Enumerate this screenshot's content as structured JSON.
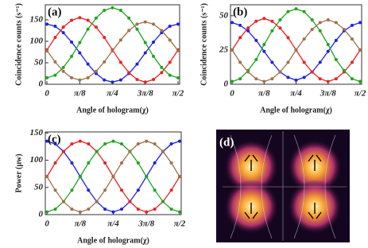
{
  "chart_data": [
    {
      "type": "line",
      "panel_label": "(a)",
      "xlabel": "Angle of hologram(χ)",
      "ylabel": "Coincidence counts (s⁻¹)",
      "x": [
        0,
        0.098,
        0.196,
        0.295,
        0.393,
        0.491,
        0.589,
        0.687,
        0.785,
        0.884,
        0.982,
        1.08,
        1.178,
        1.276,
        1.374,
        1.473,
        1.571
      ],
      "xlim": [
        -0.02,
        1.59
      ],
      "xticks": [
        0,
        {
          "value": 0.393,
          "label": "π/8"
        },
        {
          "value": 0.785,
          "label": "π/4"
        },
        {
          "value": 1.178,
          "label": "3π/8"
        },
        {
          "value": 1.571,
          "label": "π/2"
        }
      ],
      "ylim": [
        0,
        185
      ],
      "yticks": [
        0,
        50,
        100,
        150
      ],
      "series": [
        {
          "color": "#1f1fe6",
          "values": [
            140,
            135,
            120,
            98,
            73,
            47,
            25,
            10,
            5,
            10,
            25,
            47,
            73,
            98,
            120,
            135,
            140
          ]
        },
        {
          "color": "#ee2020",
          "values": [
            80,
            109,
            133,
            149,
            155,
            149,
            133,
            109,
            80,
            51,
            27,
            11,
            5,
            11,
            27,
            51,
            80
          ]
        },
        {
          "color": "#1fa51f",
          "values": [
            15,
            21,
            39,
            65,
            97,
            128,
            154,
            172,
            178,
            172,
            154,
            128,
            97,
            65,
            39,
            21,
            15
          ]
        },
        {
          "color": "#a0704a",
          "values": [
            78,
            52,
            30,
            15,
            10,
            15,
            30,
            52,
            78,
            103,
            125,
            140,
            145,
            140,
            125,
            103,
            78
          ]
        }
      ]
    },
    {
      "type": "line",
      "panel_label": "(b)",
      "xlabel": "Angle of hologram(χ)",
      "ylabel": "Coincidence counts (s⁻¹)",
      "x": [
        0,
        0.098,
        0.196,
        0.295,
        0.393,
        0.491,
        0.589,
        0.687,
        0.785,
        0.884,
        0.982,
        1.08,
        1.178,
        1.276,
        1.374,
        1.473,
        1.571
      ],
      "xlim": [
        -0.02,
        1.59
      ],
      "xticks": [
        0,
        {
          "value": 0.393,
          "label": "π/8"
        },
        {
          "value": 0.785,
          "label": "π/4"
        },
        {
          "value": 1.178,
          "label": "3π/8"
        },
        {
          "value": 1.571,
          "label": "π/2"
        }
      ],
      "ylim": [
        0,
        58
      ],
      "yticks": [
        0,
        25,
        50
      ],
      "series": [
        {
          "color": "#1f1fe6",
          "values": [
            45,
            43,
            39,
            32,
            24,
            16,
            9,
            5,
            3,
            5,
            9,
            16,
            24,
            32,
            39,
            43,
            45
          ]
        },
        {
          "color": "#ee2020",
          "values": [
            25,
            34,
            41,
            46,
            48,
            46,
            41,
            34,
            25,
            16,
            9,
            4,
            2,
            4,
            9,
            16,
            25
          ]
        },
        {
          "color": "#1fa51f",
          "values": [
            2,
            4,
            10,
            18,
            29,
            39,
            47,
            53,
            55,
            53,
            47,
            39,
            29,
            18,
            10,
            4,
            2
          ]
        },
        {
          "color": "#a0704a",
          "values": [
            25,
            16,
            9,
            4,
            2,
            4,
            9,
            16,
            25,
            33,
            40,
            45,
            47,
            45,
            40,
            33,
            25
          ]
        }
      ]
    },
    {
      "type": "line",
      "panel_label": "(c)",
      "xlabel": "Angle of hologram(χ)",
      "ylabel": "Power (μw)",
      "x": [
        0,
        0.098,
        0.196,
        0.295,
        0.393,
        0.491,
        0.589,
        0.687,
        0.785,
        0.884,
        0.982,
        1.08,
        1.178,
        1.276,
        1.374,
        1.473,
        1.571
      ],
      "xlim": [
        -0.02,
        1.59
      ],
      "xticks": [
        0,
        {
          "value": 0.393,
          "label": "π/8"
        },
        {
          "value": 0.785,
          "label": "π/4"
        },
        {
          "value": 1.178,
          "label": "3π/8"
        },
        {
          "value": 1.571,
          "label": "π/2"
        }
      ],
      "ylim": [
        0,
        152
      ],
      "yticks": [
        0,
        50,
        100,
        150
      ],
      "series": [
        {
          "color": "#1f1fe6",
          "values": [
            135,
            130,
            116,
            95,
            70,
            45,
            24,
            10,
            5,
            10,
            24,
            45,
            70,
            95,
            116,
            130,
            135
          ]
        },
        {
          "color": "#ee2020",
          "values": [
            70,
            95,
            116,
            130,
            135,
            130,
            116,
            95,
            70,
            45,
            24,
            10,
            5,
            10,
            24,
            45,
            70
          ]
        },
        {
          "color": "#1fa51f",
          "values": [
            5,
            10,
            24,
            45,
            70,
            95,
            116,
            130,
            135,
            130,
            116,
            95,
            70,
            45,
            24,
            10,
            5
          ]
        },
        {
          "color": "#a0704a",
          "values": [
            70,
            45,
            24,
            10,
            5,
            10,
            24,
            45,
            70,
            95,
            116,
            130,
            135,
            130,
            116,
            95,
            70
          ]
        }
      ]
    }
  ],
  "image_panel": {
    "label": "(d)"
  }
}
